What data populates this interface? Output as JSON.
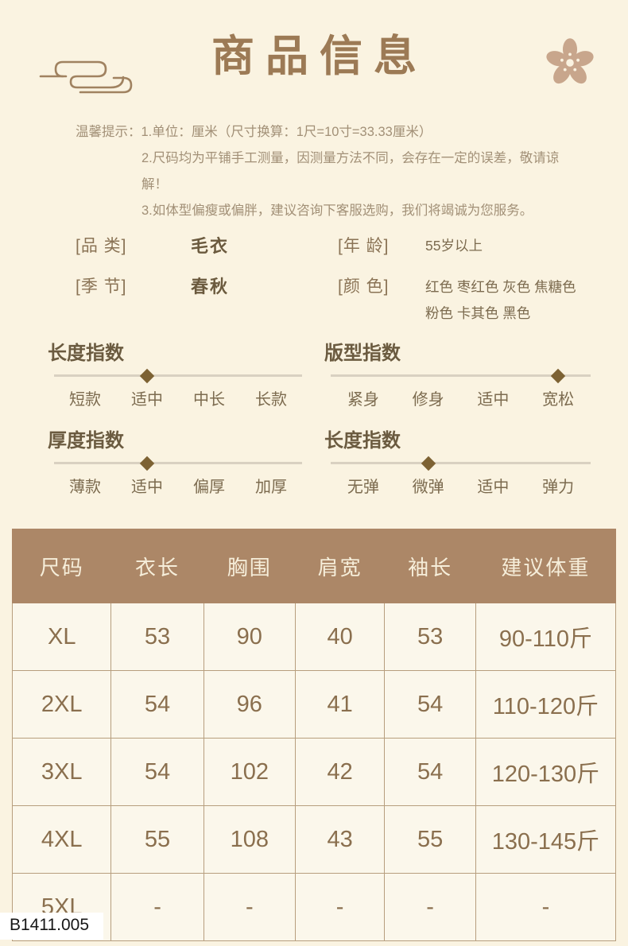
{
  "colors": {
    "page_bg": "#FAF3E1",
    "title_brown": "#9C7A55",
    "table_header_bg": "#AC8767",
    "diamond": "#7D6233",
    "cell_text": "#8A6F4E"
  },
  "header": {
    "title": "商品信息",
    "left_icon": "cloud-motif",
    "right_icon": "sakura-flower"
  },
  "tips": {
    "label": "温馨提示：",
    "lines": [
      "1.单位：厘米（尺寸换算：1尺=10寸=33.33厘米）",
      "2.尺码均为平铺手工测量，因测量方法不同，会存在一定的误差，敬请谅解！",
      "3.如体型偏瘦或偏胖，建议咨询下客服选购，我们将竭诚为您服务。"
    ]
  },
  "attributes": {
    "category": {
      "label": "[品  类]",
      "value": "毛衣"
    },
    "season": {
      "label": "[季  节]",
      "value": "春秋"
    },
    "age": {
      "label": "[年  龄]",
      "value": "55岁以上"
    },
    "color": {
      "label": "[颜  色]",
      "value": "红色 枣红色 灰色 焦糖色 粉色 卡其色 黑色",
      "value_lines": [
        "红色 枣红色 灰色 焦糖色",
        "粉色 卡其色 黑色"
      ]
    }
  },
  "indices": [
    {
      "title": "长度指数",
      "options": [
        "短款",
        "适中",
        "中长",
        "长款"
      ],
      "selected_index": 1
    },
    {
      "title": "版型指数",
      "options": [
        "紧身",
        "修身",
        "适中",
        "宽松"
      ],
      "selected_index": 3
    },
    {
      "title": "厚度指数",
      "options": [
        "薄款",
        "适中",
        "偏厚",
        "加厚"
      ],
      "selected_index": 1
    },
    {
      "title": "长度指数",
      "options": [
        "无弹",
        "微弹",
        "适中",
        "弹力"
      ],
      "selected_index": 1
    }
  ],
  "size_table": {
    "headers": [
      "尺码",
      "衣长",
      "胸围",
      "肩宽",
      "袖长",
      "建议体重"
    ],
    "rows": [
      [
        "XL",
        "53",
        "90",
        "40",
        "53",
        "90-110斤"
      ],
      [
        "2XL",
        "54",
        "96",
        "41",
        "54",
        "110-120斤"
      ],
      [
        "3XL",
        "54",
        "102",
        "42",
        "54",
        "120-130斤"
      ],
      [
        "4XL",
        "55",
        "108",
        "43",
        "55",
        "130-145斤"
      ],
      [
        "5XL",
        "-",
        "-",
        "-",
        "-",
        "-"
      ]
    ]
  },
  "product_code": "B1411.005"
}
